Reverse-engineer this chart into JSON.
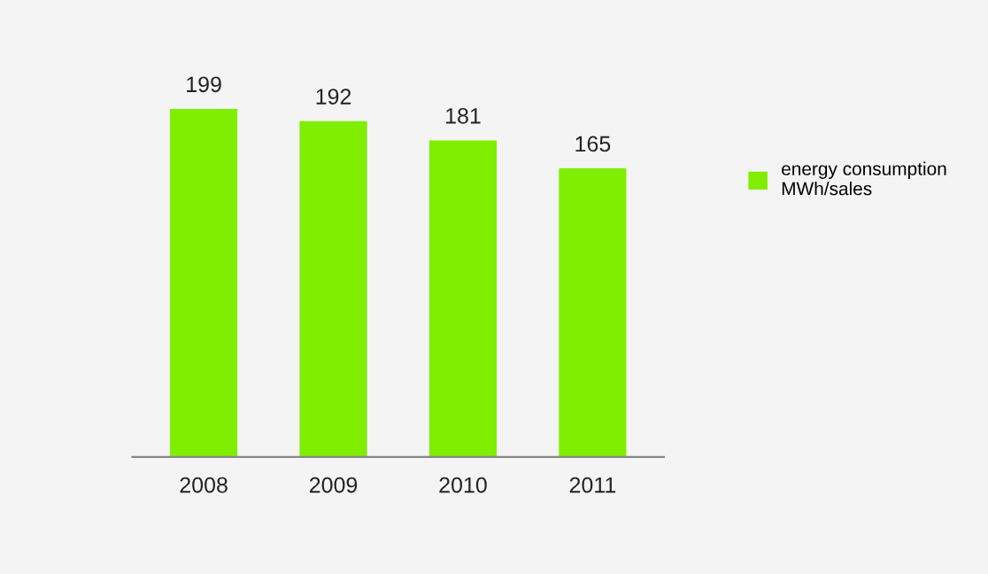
{
  "chart_data": {
    "type": "bar",
    "categories": [
      "2008",
      "2009",
      "2010",
      "2011"
    ],
    "series": [
      {
        "name": "energy consumption\nMWh/sales",
        "color": "#80ee00",
        "values": [
          199,
          192,
          181,
          165
        ]
      }
    ],
    "data_labels": true,
    "legend": "right",
    "grid": false
  }
}
